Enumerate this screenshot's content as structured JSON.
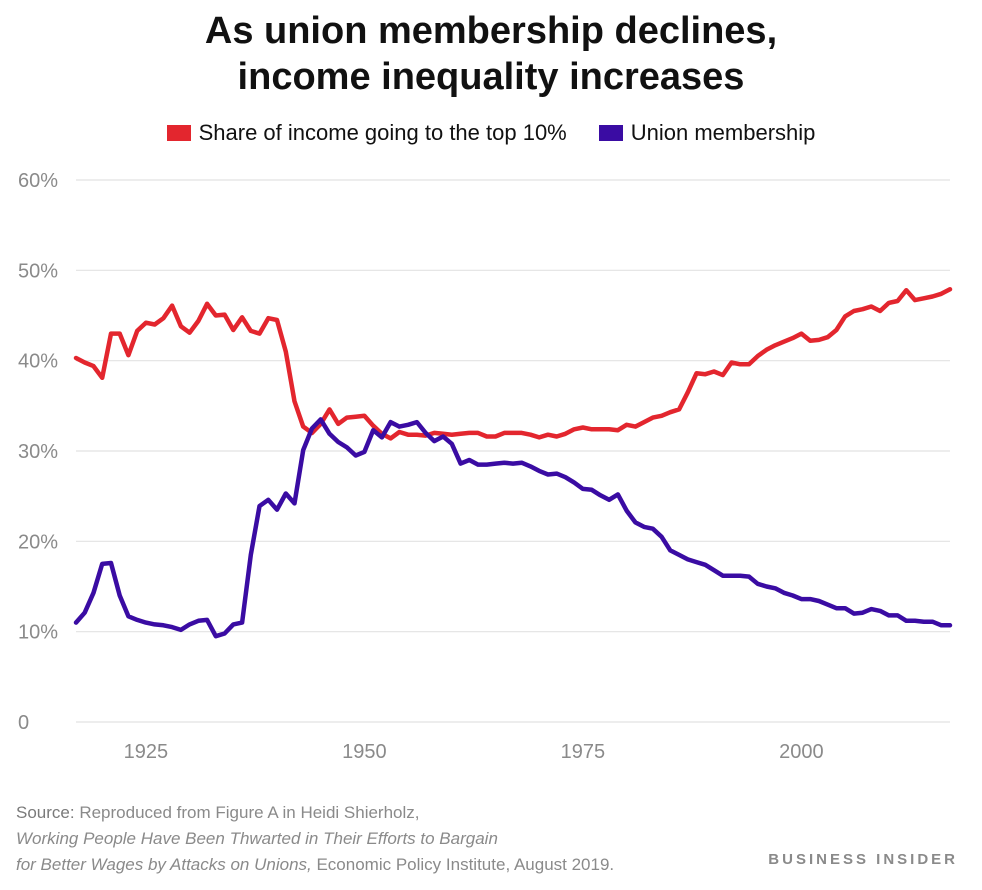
{
  "title_line1": "As union membership declines,",
  "title_line2": "income inequality increases",
  "legend": [
    {
      "label": "Share of income going to the top 10%",
      "color": "#e3262e"
    },
    {
      "label": "Union membership",
      "color": "#3a0ca3"
    }
  ],
  "source": {
    "label": "Source:",
    "line1": "Reproduced from Figure A in Heidi Shierholz,",
    "line2": "Working People Have Been Thwarted in Their Efforts to Bargain",
    "line3_italic": "for Better Wages by Attacks on Unions,",
    "line3_rest": " Economic Policy Institute, August 2019."
  },
  "brand": "BUSINESS INSIDER",
  "chart_data": {
    "type": "line",
    "xlim": [
      1917,
      2017
    ],
    "ylim": [
      0,
      60
    ],
    "yticks": [
      0,
      10,
      20,
      30,
      40,
      50,
      60
    ],
    "ytick_labels": [
      "0",
      "10%",
      "20%",
      "30%",
      "40%",
      "50%",
      "60%"
    ],
    "xticks": [
      1925,
      1950,
      1975,
      2000
    ],
    "xtick_labels": [
      "1925",
      "1950",
      "1975",
      "2000"
    ],
    "grid": true,
    "legend_position": "top",
    "series": [
      {
        "name": "Share of income going to the top 10%",
        "color": "#e3262e",
        "x": [
          1917,
          1918,
          1919,
          1920,
          1921,
          1922,
          1923,
          1924,
          1925,
          1926,
          1927,
          1928,
          1929,
          1930,
          1931,
          1932,
          1933,
          1934,
          1935,
          1936,
          1937,
          1938,
          1939,
          1940,
          1941,
          1942,
          1943,
          1944,
          1945,
          1946,
          1947,
          1948,
          1949,
          1950,
          1951,
          1952,
          1953,
          1954,
          1955,
          1956,
          1957,
          1958,
          1959,
          1960,
          1961,
          1962,
          1963,
          1964,
          1965,
          1966,
          1967,
          1968,
          1969,
          1970,
          1971,
          1972,
          1973,
          1974,
          1975,
          1976,
          1977,
          1978,
          1979,
          1980,
          1981,
          1982,
          1983,
          1984,
          1985,
          1986,
          1987,
          1988,
          1989,
          1990,
          1991,
          1992,
          1993,
          1994,
          1995,
          1996,
          1997,
          1998,
          1999,
          2000,
          2001,
          2002,
          2003,
          2004,
          2005,
          2006,
          2007,
          2008,
          2009,
          2010,
          2011,
          2012,
          2013,
          2014,
          2015,
          2016,
          2017
        ],
        "values": [
          40.3,
          39.8,
          39.4,
          38.1,
          43.0,
          43.0,
          40.6,
          43.3,
          44.2,
          44.0,
          44.7,
          46.1,
          43.8,
          43.1,
          44.4,
          46.3,
          45.0,
          45.1,
          43.4,
          44.8,
          43.3,
          43.0,
          44.7,
          44.5,
          41.0,
          35.5,
          32.7,
          32.0,
          33.0,
          34.6,
          33.0,
          33.7,
          33.8,
          33.9,
          32.8,
          31.9,
          31.4,
          32.1,
          31.8,
          31.8,
          31.7,
          32.0,
          31.9,
          31.8,
          31.9,
          32.0,
          32.0,
          31.6,
          31.6,
          32.0,
          32.0,
          32.0,
          31.8,
          31.5,
          31.8,
          31.6,
          31.9,
          32.4,
          32.6,
          32.4,
          32.4,
          32.4,
          32.3,
          32.9,
          32.7,
          33.2,
          33.7,
          33.9,
          34.3,
          34.6,
          36.5,
          38.6,
          38.5,
          38.8,
          38.4,
          39.8,
          39.6,
          39.6,
          40.5,
          41.2,
          41.7,
          42.1,
          42.5,
          43.0,
          42.2,
          42.3,
          42.6,
          43.4,
          44.9,
          45.5,
          45.7,
          46.0,
          45.5,
          46.4,
          46.6,
          47.8,
          46.7,
          46.9,
          47.1,
          47.4,
          47.9
        ]
      },
      {
        "name": "Union membership",
        "color": "#3a0ca3",
        "x": [
          1917,
          1918,
          1919,
          1920,
          1921,
          1922,
          1923,
          1924,
          1925,
          1926,
          1927,
          1928,
          1929,
          1930,
          1931,
          1932,
          1933,
          1934,
          1935,
          1936,
          1937,
          1938,
          1939,
          1940,
          1941,
          1942,
          1943,
          1944,
          1945,
          1946,
          1947,
          1948,
          1949,
          1950,
          1951,
          1952,
          1953,
          1954,
          1955,
          1956,
          1957,
          1958,
          1959,
          1960,
          1961,
          1962,
          1963,
          1964,
          1965,
          1966,
          1967,
          1968,
          1969,
          1970,
          1971,
          1972,
          1973,
          1974,
          1975,
          1976,
          1977,
          1978,
          1979,
          1980,
          1981,
          1982,
          1983,
          1984,
          1985,
          1986,
          1987,
          1988,
          1989,
          1990,
          1991,
          1992,
          1993,
          1994,
          1995,
          1996,
          1997,
          1998,
          1999,
          2000,
          2001,
          2002,
          2003,
          2004,
          2005,
          2006,
          2007,
          2008,
          2009,
          2010,
          2011,
          2012,
          2013,
          2014,
          2015,
          2016,
          2017
        ],
        "values": [
          11.0,
          12.1,
          14.3,
          17.5,
          17.6,
          14.0,
          11.7,
          11.3,
          11.0,
          10.8,
          10.7,
          10.5,
          10.2,
          10.8,
          11.2,
          11.3,
          9.5,
          9.8,
          10.8,
          11.0,
          18.5,
          23.9,
          24.6,
          23.5,
          25.3,
          24.2,
          30.1,
          32.5,
          33.5,
          31.9,
          31.0,
          30.4,
          29.5,
          29.9,
          32.3,
          31.5,
          33.2,
          32.7,
          32.9,
          33.2,
          32.0,
          31.1,
          31.6,
          30.8,
          28.6,
          29.0,
          28.5,
          28.5,
          28.6,
          28.7,
          28.6,
          28.7,
          28.3,
          27.8,
          27.4,
          27.5,
          27.1,
          26.5,
          25.8,
          25.7,
          25.1,
          24.6,
          25.2,
          23.4,
          22.1,
          21.6,
          21.4,
          20.5,
          19.0,
          18.5,
          18.0,
          17.7,
          17.4,
          16.8,
          16.2,
          16.2,
          16.2,
          16.1,
          15.3,
          15.0,
          14.8,
          14.3,
          14.0,
          13.6,
          13.6,
          13.4,
          13.0,
          12.6,
          12.6,
          12.0,
          12.1,
          12.5,
          12.3,
          11.8,
          11.8,
          11.2,
          11.2,
          11.1,
          11.1,
          10.7,
          10.7
        ]
      }
    ]
  }
}
